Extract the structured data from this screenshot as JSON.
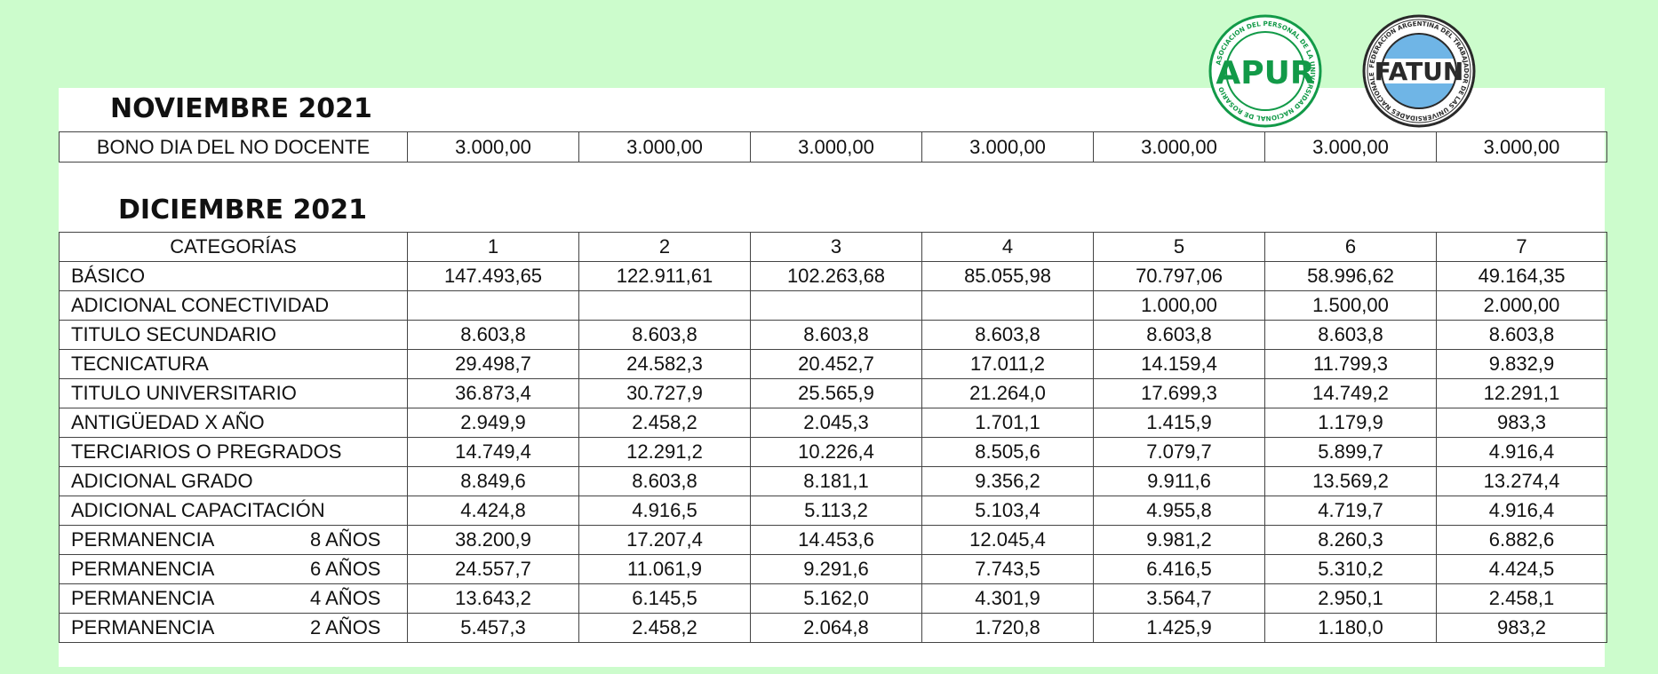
{
  "logos": {
    "apur": {
      "text": "APUR",
      "ring_text": "ASOCIACION DEL PERSONAL DE LA UNIVERSIDAD NACIONAL DE ROSARIO",
      "color": "#129a48"
    },
    "fatun": {
      "text": "FATUN",
      "ring_text": "FEDERACION ARGENTINA DEL TRABAJADOR DE LAS UNIVERSIDADES NACIONALES",
      "color": "#2a2a2a",
      "accent": "#6fb5e6"
    }
  },
  "noviembre": {
    "title": "NOVIEMBRE 2021",
    "row": {
      "label": "BONO DIA DEL NO DOCENTE",
      "values": [
        "3.000,00",
        "3.000,00",
        "3.000,00",
        "3.000,00",
        "3.000,00",
        "3.000,00",
        "3.000,00"
      ]
    }
  },
  "diciembre": {
    "title": "DICIEMBRE 2021",
    "header": {
      "label": "CATEGORÍAS",
      "columns": [
        "1",
        "2",
        "3",
        "4",
        "5",
        "6",
        "7"
      ]
    },
    "rows": [
      {
        "label": "BÁSICO",
        "years": "",
        "values": [
          "147.493,65",
          "122.911,61",
          "102.263,68",
          "85.055,98",
          "70.797,06",
          "58.996,62",
          "49.164,35"
        ]
      },
      {
        "label": "ADICIONAL  CONECTIVIDAD",
        "years": "",
        "values": [
          "",
          "",
          "",
          "",
          "1.000,00",
          "1.500,00",
          "2.000,00"
        ]
      },
      {
        "label": "TITULO SECUNDARIO",
        "years": "",
        "values": [
          "8.603,8",
          "8.603,8",
          "8.603,8",
          "8.603,8",
          "8.603,8",
          "8.603,8",
          "8.603,8"
        ]
      },
      {
        "label": "TECNICATURA",
        "years": "",
        "values": [
          "29.498,7",
          "24.582,3",
          "20.452,7",
          "17.011,2",
          "14.159,4",
          "11.799,3",
          "9.832,9"
        ]
      },
      {
        "label": "TITULO UNIVERSITARIO",
        "years": "",
        "values": [
          "36.873,4",
          "30.727,9",
          "25.565,9",
          "21.264,0",
          "17.699,3",
          "14.749,2",
          "12.291,1"
        ]
      },
      {
        "label": "ANTIGÜEDAD X AÑO",
        "years": "",
        "values": [
          "2.949,9",
          "2.458,2",
          "2.045,3",
          "1.701,1",
          "1.415,9",
          "1.179,9",
          "983,3"
        ]
      },
      {
        "label": "TERCIARIOS O PREGRADOS",
        "years": "",
        "values": [
          "14.749,4",
          "12.291,2",
          "10.226,4",
          "8.505,6",
          "7.079,7",
          "5.899,7",
          "4.916,4"
        ]
      },
      {
        "label": "ADICIONAL GRADO",
        "years": "",
        "values": [
          "8.849,6",
          "8.603,8",
          "8.181,1",
          "9.356,2",
          "9.911,6",
          "13.569,2",
          "13.274,4"
        ]
      },
      {
        "label": "ADICIONAL CAPACITACIÓN",
        "years": "",
        "values": [
          "4.424,8",
          "4.916,5",
          "5.113,2",
          "5.103,4",
          "4.955,8",
          "4.719,7",
          "4.916,4"
        ]
      },
      {
        "label": "PERMANENCIA",
        "years": "8 AÑOS",
        "values": [
          "38.200,9",
          "17.207,4",
          "14.453,6",
          "12.045,4",
          "9.981,2",
          "8.260,3",
          "6.882,6"
        ]
      },
      {
        "label": "PERMANENCIA",
        "years": "6 AÑOS",
        "values": [
          "24.557,7",
          "11.061,9",
          "9.291,6",
          "7.743,5",
          "6.416,5",
          "5.310,2",
          "4.424,5"
        ]
      },
      {
        "label": "PERMANENCIA",
        "years": "4 AÑOS",
        "values": [
          "13.643,2",
          "6.145,5",
          "5.162,0",
          "4.301,9",
          "3.564,7",
          "2.950,1",
          "2.458,1"
        ]
      },
      {
        "label": "PERMANENCIA",
        "years": "2 AÑOS",
        "values": [
          "5.457,3",
          "2.458,2",
          "2.064,8",
          "1.720,8",
          "1.425,9",
          "1.180,0",
          "983,2"
        ]
      }
    ]
  }
}
